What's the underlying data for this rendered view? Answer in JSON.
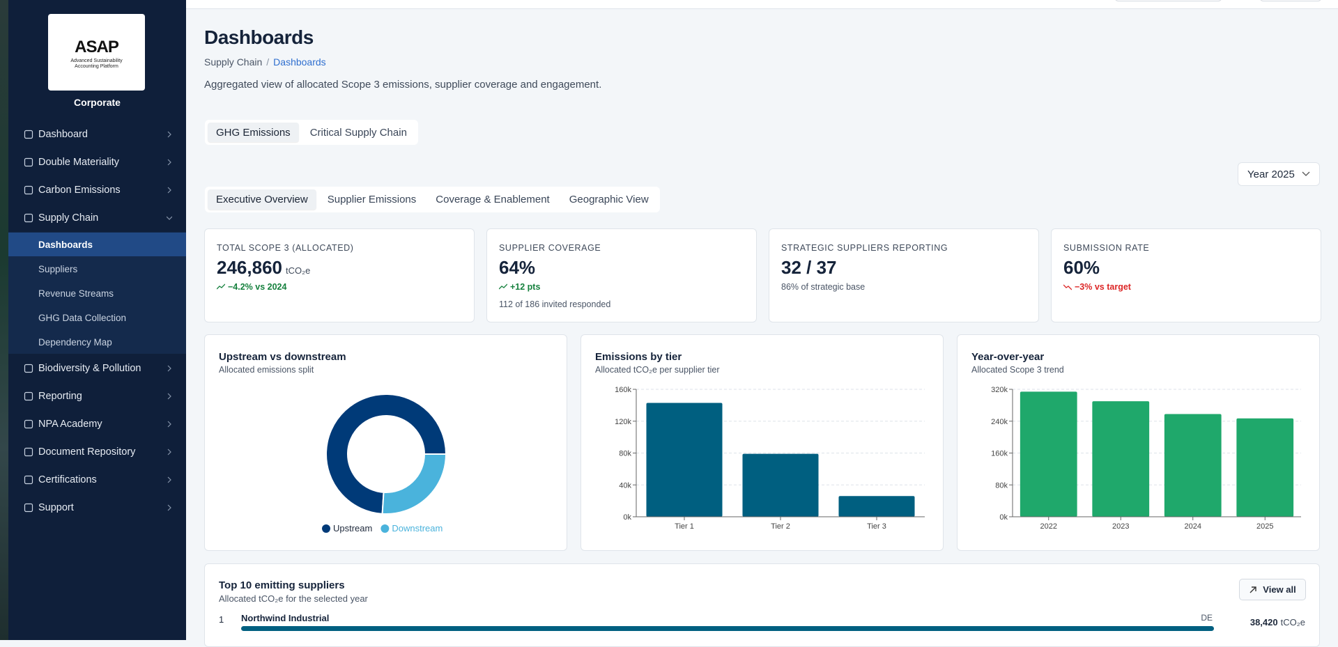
{
  "sidebar": {
    "logo": {
      "title": "ASAP",
      "subtitle": "Advanced Sustainability Accounting Platform"
    },
    "org": "Corporate",
    "menu_top": [
      "Dashboard",
      "Double Materiality",
      "Carbon Emissions",
      "Supply Chain"
    ],
    "submenu": [
      "Dashboards",
      "Suppliers",
      "Revenue Streams",
      "GHG Data Collection",
      "Dependency Map"
    ],
    "menu_bottom": [
      "Biodiversity & Pollution",
      "Reporting",
      "NPA Academy",
      "Document Repository",
      "Certifications",
      "Support"
    ]
  },
  "header": {
    "title": "Dashboards",
    "breadcrumb": [
      "Supply Chain",
      "Dashboards"
    ],
    "description": "Aggregated view of allocated Scope 3 emissions, supplier coverage and engagement."
  },
  "tabs": [
    "GHG Emissions",
    "Critical Supply Chain"
  ],
  "year_select": "Year 2025",
  "subtabs": [
    "Executive Overview",
    "Supplier Emissions",
    "Coverage & Enablement",
    "Geographic View"
  ],
  "kpis": [
    {
      "label": "TOTAL SCOPE 3 (ALLOCATED)",
      "value": "246,860",
      "unit": "tCO₂e",
      "delta": "−4.2% vs 2024",
      "trend": "good"
    },
    {
      "label": "SUPPLIER COVERAGE",
      "value": "64%",
      "delta": "+12 pts",
      "trend": "good",
      "note": "112 of 186 invited responded"
    },
    {
      "label": "STRATEGIC SUPPLIERS REPORTING",
      "value": "32 / 37",
      "note": "86% of strategic base"
    },
    {
      "label": "SUBMISSION RATE",
      "value": "60%",
      "delta": "−3% vs target",
      "trend": "bad"
    }
  ],
  "chart_data": [
    {
      "type": "pie",
      "title": "Upstream vs downstream",
      "subtitle": "Allocated emissions split",
      "categories": [
        "Upstream",
        "Downstream"
      ],
      "values": [
        74,
        26
      ],
      "colors": [
        "#003a78",
        "#4ab3dc"
      ],
      "legend": "bottom"
    },
    {
      "type": "bar",
      "title": "Emissions by tier",
      "subtitle": "Allocated tCO₂e per supplier tier",
      "categories": [
        "Tier 1",
        "Tier 2",
        "Tier 3"
      ],
      "values": [
        143000,
        79000,
        26000
      ],
      "color": "#005f80",
      "ylim": [
        0,
        160000
      ],
      "yticks": [
        {
          "value": 0,
          "label": "0k"
        },
        {
          "value": 40000,
          "label": "40k"
        },
        {
          "value": 80000,
          "label": "80k"
        },
        {
          "value": 120000,
          "label": "120k"
        },
        {
          "value": 160000,
          "label": "160k"
        }
      ],
      "grid": true
    },
    {
      "type": "bar",
      "title": "Year-over-year",
      "subtitle": "Allocated Scope 3 trend",
      "categories": [
        "2022",
        "2023",
        "2024",
        "2025"
      ],
      "values": [
        314000,
        290000,
        258000,
        247000
      ],
      "color": "#1fa86b",
      "ylim": [
        0,
        320000
      ],
      "yticks": [
        {
          "value": 0,
          "label": "0k"
        },
        {
          "value": 80000,
          "label": "80k"
        },
        {
          "value": 160000,
          "label": "160k"
        },
        {
          "value": 240000,
          "label": "240k"
        },
        {
          "value": 320000,
          "label": "320k"
        }
      ],
      "grid": true
    }
  ],
  "top_suppliers": {
    "title": "Top 10 emitting suppliers",
    "subtitle": "Allocated tCO₂e for the selected year",
    "button": "View all",
    "rows": [
      {
        "rank": "1",
        "name": "Northwind Industrial",
        "country": "DE",
        "value": "38,420",
        "unit": "tCO₂e"
      }
    ]
  }
}
